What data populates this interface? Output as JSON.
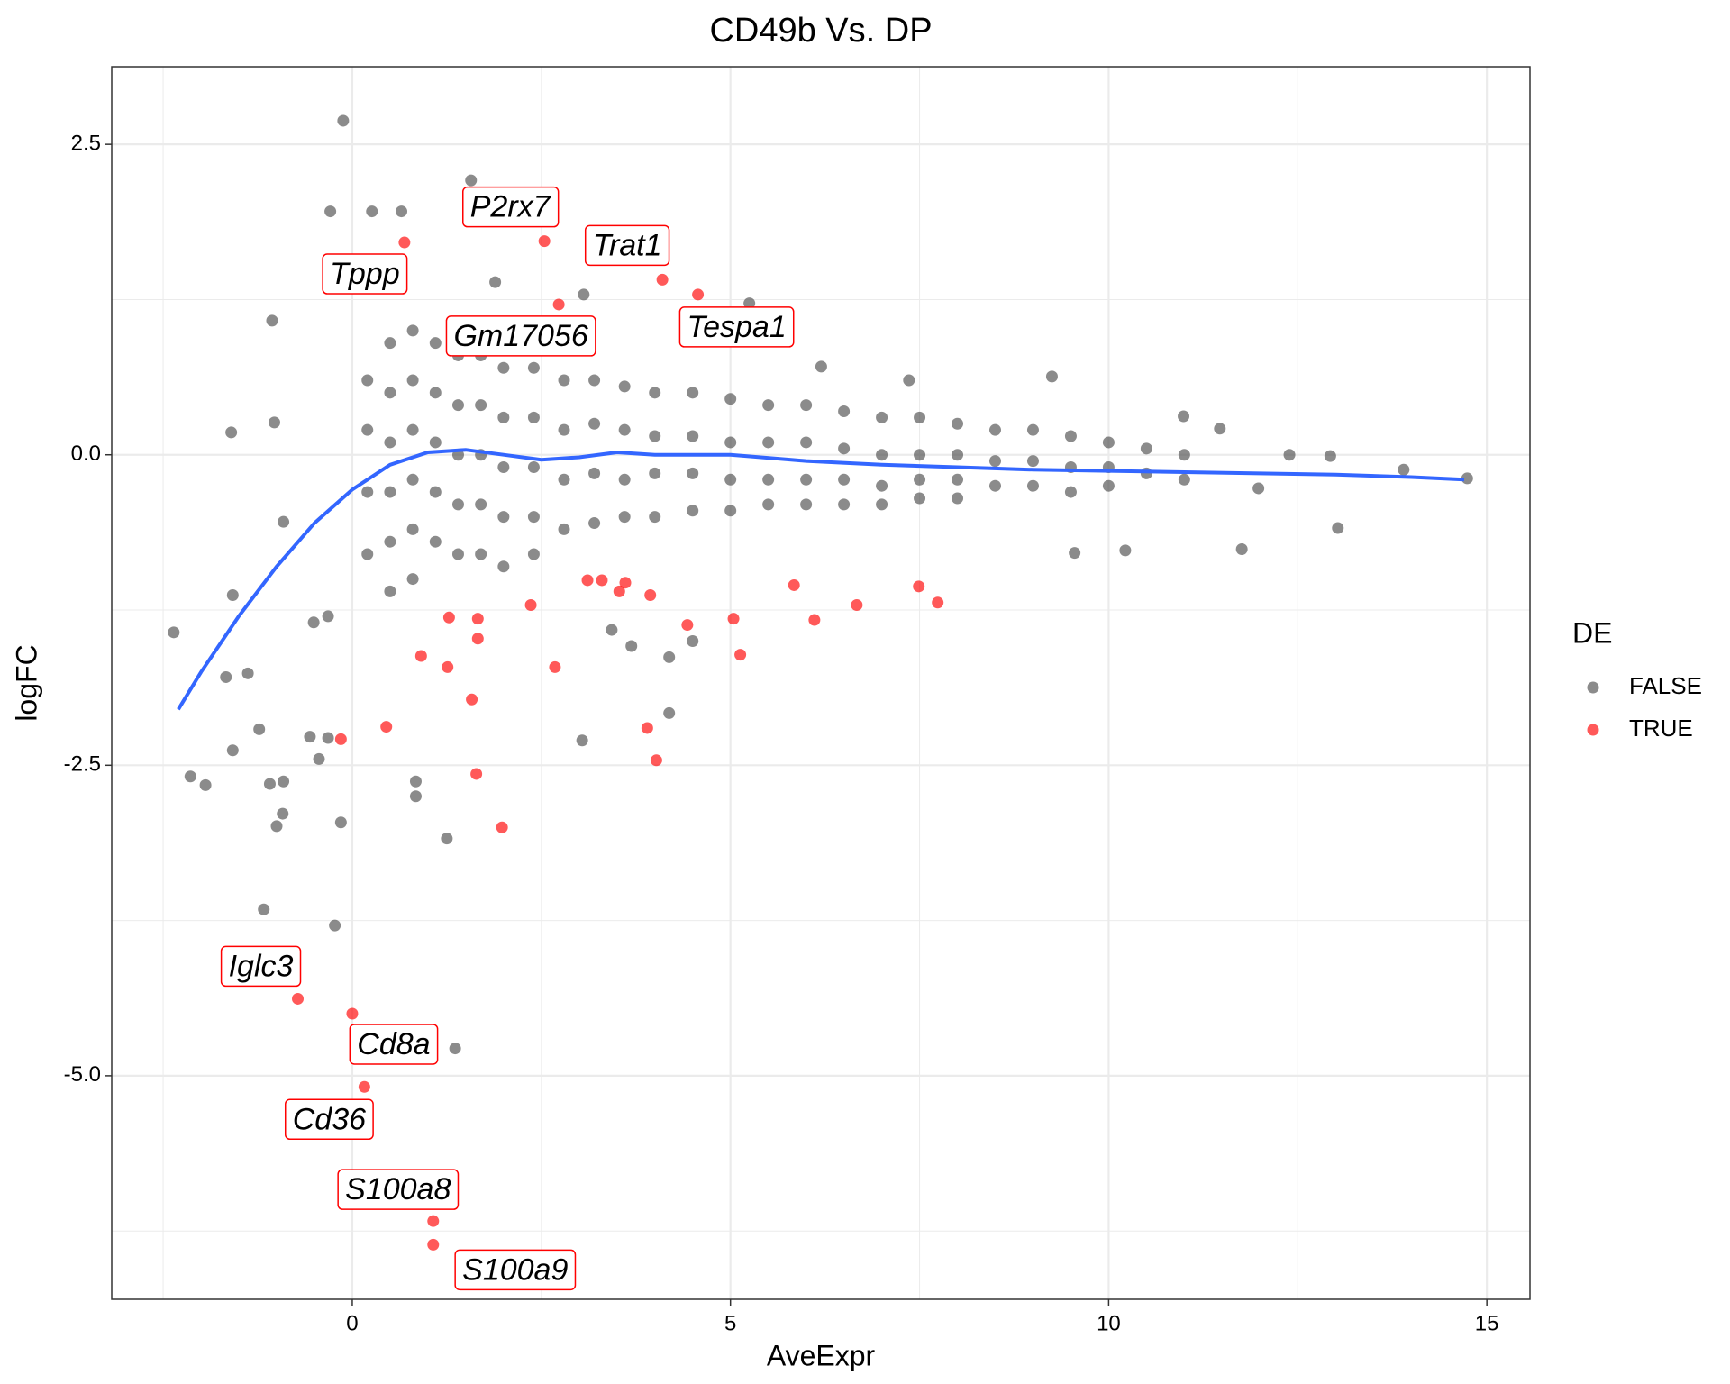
{
  "chart_data": {
    "type": "scatter",
    "title": "CD49b Vs. DP",
    "x_label": "AveExpr",
    "y_label": "logFC",
    "legend_title": "DE",
    "legend_position": "right",
    "xlim": [
      -3.18,
      15.57
    ],
    "ylim": [
      -6.8,
      3.125
    ],
    "xticks": [
      0,
      5,
      10,
      15
    ],
    "yticks": [
      {
        "value": -5,
        "label": "-5.0"
      },
      {
        "value": -2.5,
        "label": "-2.5"
      },
      {
        "value": 0,
        "label": "0.0"
      },
      2.5
    ],
    "x_minor_grid": [
      -2.5,
      2.5,
      7.5,
      12.5
    ],
    "y_minor_grid": [
      -6.25,
      -3.75,
      -1.25,
      1.25
    ],
    "grid": true,
    "series": [
      {
        "name": "FALSE",
        "color": "#4d4d4d",
        "x": [
          0.2,
          0.2,
          0.2,
          0.2,
          0.5,
          0.5,
          0.5,
          0.5,
          0.5,
          0.5,
          0.8,
          0.8,
          0.8,
          0.8,
          0.8,
          0.8,
          1.1,
          1.1,
          1.1,
          1.1,
          1.1,
          1.4,
          1.4,
          1.4,
          1.4,
          1.4,
          1.7,
          1.7,
          1.7,
          1.7,
          1.7,
          2.0,
          2.0,
          2.0,
          2.0,
          2.0,
          2.4,
          2.4,
          2.4,
          2.4,
          2.4,
          2.8,
          2.8,
          2.8,
          2.8,
          3.2,
          3.2,
          3.2,
          3.2,
          3.6,
          3.6,
          3.6,
          3.6,
          4.0,
          4.0,
          4.0,
          4.0,
          4.5,
          4.5,
          4.5,
          4.5,
          5.0,
          5.0,
          5.0,
          5.0,
          5.5,
          5.5,
          5.5,
          5.5,
          6.0,
          6.0,
          6.0,
          6.0,
          6.5,
          6.5,
          6.5,
          6.5,
          7.0,
          7.0,
          7.0,
          7.0,
          7.5,
          7.5,
          7.5,
          7.5,
          8.0,
          8.0,
          8.0,
          8.0,
          8.5,
          8.5,
          8.5,
          9.0,
          9.0,
          9.0,
          9.5,
          9.5,
          9.5,
          10.0,
          10.0,
          10.0,
          10.5,
          10.5,
          11.0,
          11.0,
          -0.12,
          1.57,
          -0.29,
          0.26,
          0.65,
          -1.06,
          -1.6,
          -2.36,
          -1.58,
          -1.67,
          -1.38,
          -1.58,
          -1.23,
          -2.14,
          -1.94,
          -1.09,
          -0.91,
          -1.0,
          -0.92,
          -1.17,
          -0.23,
          -0.15,
          1.36,
          1.25,
          0.84,
          0.84,
          3.04,
          4.19,
          13.03,
          13.9,
          14.74,
          12.93,
          11.76,
          9.25,
          10.99,
          3.06,
          1.89,
          5.25,
          -1.03,
          -0.91,
          -0.32,
          -0.51,
          -0.56,
          -0.32,
          -0.44,
          3.43,
          3.69,
          4.19,
          4.5,
          6.2,
          7.36,
          9.55,
          10.22,
          11.47,
          12.39,
          11.98
        ],
        "values": [
          0.6,
          0.2,
          -0.3,
          -0.8,
          0.9,
          0.5,
          0.1,
          -0.3,
          -0.7,
          -1.1,
          1.0,
          0.6,
          0.2,
          -0.2,
          -0.6,
          -1.0,
          0.9,
          0.5,
          0.1,
          -0.3,
          -0.7,
          0.8,
          0.4,
          0.0,
          -0.4,
          -0.8,
          0.8,
          0.4,
          0.0,
          -0.4,
          -0.8,
          0.7,
          0.3,
          -0.1,
          -0.5,
          -0.9,
          0.7,
          0.3,
          -0.1,
          -0.5,
          -0.8,
          0.6,
          0.2,
          -0.2,
          -0.6,
          0.6,
          0.25,
          -0.15,
          -0.55,
          0.55,
          0.2,
          -0.2,
          -0.5,
          0.5,
          0.15,
          -0.15,
          -0.5,
          0.5,
          0.15,
          -0.15,
          -0.45,
          0.45,
          0.1,
          -0.2,
          -0.45,
          0.4,
          0.1,
          -0.2,
          -0.4,
          0.4,
          0.1,
          -0.2,
          -0.4,
          0.35,
          0.05,
          -0.2,
          -0.4,
          0.3,
          0.0,
          -0.25,
          -0.4,
          0.3,
          0.0,
          -0.2,
          -0.35,
          0.25,
          0.0,
          -0.2,
          -0.35,
          0.2,
          -0.05,
          -0.25,
          0.2,
          -0.05,
          -0.25,
          0.15,
          -0.1,
          -0.3,
          0.1,
          -0.1,
          -0.25,
          0.05,
          -0.15,
          0.0,
          -0.2,
          2.69,
          2.21,
          1.96,
          1.96,
          1.96,
          1.08,
          0.18,
          -1.43,
          -1.13,
          -1.79,
          -1.76,
          -2.38,
          -2.21,
          -2.59,
          -2.66,
          -2.65,
          -2.63,
          -2.99,
          -2.89,
          -3.66,
          -3.79,
          -2.96,
          -4.78,
          -3.09,
          -2.63,
          -2.75,
          -2.3,
          -2.08,
          -0.59,
          -0.12,
          -0.19,
          -0.01,
          -0.76,
          0.63,
          0.31,
          1.29,
          1.39,
          1.22,
          0.26,
          -0.54,
          -1.3,
          -1.35,
          -2.27,
          -2.28,
          -2.45,
          -1.41,
          -1.54,
          -1.63,
          -1.5,
          0.71,
          0.6,
          -0.79,
          -0.77,
          0.21,
          0.0,
          -0.27
        ]
      },
      {
        "name": "TRUE",
        "color": "#ff0000",
        "x": [
          1.28,
          1.66,
          1.66,
          1.26,
          0.91,
          0.45,
          -0.15,
          1.58,
          1.64,
          1.98,
          2.36,
          2.68,
          3.11,
          3.3,
          3.53,
          3.61,
          3.94,
          3.9,
          4.02,
          4.43,
          5.04,
          5.13,
          5.84,
          6.11,
          6.67,
          7.49,
          7.74,
          2.54,
          4.1,
          0.69,
          4.57,
          2.73,
          -0.72,
          0.0,
          0.16,
          1.07,
          1.07
        ],
        "values": [
          -1.31,
          -1.32,
          -1.48,
          -1.71,
          -1.62,
          -2.19,
          -2.29,
          -1.97,
          -2.57,
          -3.0,
          -1.21,
          -1.71,
          -1.01,
          -1.01,
          -1.1,
          -1.03,
          -1.13,
          -2.2,
          -2.46,
          -1.37,
          -1.32,
          -1.61,
          -1.05,
          -1.33,
          -1.21,
          -1.06,
          -1.19,
          1.72,
          1.41,
          1.71,
          1.29,
          1.21,
          -4.38,
          -4.5,
          -5.09,
          -6.17,
          -6.36
        ]
      }
    ],
    "trend": {
      "color": "#3366ff",
      "x": [
        -2.3,
        -2,
        -1.5,
        -1,
        -0.5,
        0,
        0.5,
        1,
        1.5,
        2,
        2.5,
        3,
        3.5,
        4,
        4.5,
        5,
        6,
        7,
        8,
        9,
        10,
        11,
        12,
        13,
        14,
        14.7
      ],
      "values": [
        -2.05,
        -1.75,
        -1.3,
        -0.9,
        -0.55,
        -0.28,
        -0.08,
        0.02,
        0.04,
        0,
        -0.04,
        -0.02,
        0.02,
        0.0,
        0.0,
        0.0,
        -0.05,
        -0.08,
        -0.1,
        -0.12,
        -0.13,
        -0.14,
        -0.15,
        -0.16,
        -0.18,
        -0.2
      ]
    },
    "annotations": [
      {
        "text": "P2rx7",
        "x": 2.54,
        "y": 1.72
      },
      {
        "text": "Trat1",
        "x": 4.1,
        "y": 1.41
      },
      {
        "text": "Tppp",
        "x": 0.69,
        "y": 1.71
      },
      {
        "text": "Tespa1",
        "x": 4.57,
        "y": 1.29
      },
      {
        "text": "Gm17056",
        "x": 2.73,
        "y": 1.21
      },
      {
        "text": "Iglc3",
        "x": -0.72,
        "y": -4.38
      },
      {
        "text": "Cd8a",
        "x": 0.0,
        "y": -4.5
      },
      {
        "text": "Cd36",
        "x": 0.16,
        "y": -5.09
      },
      {
        "text": "S100a8",
        "x": 1.07,
        "y": -6.17
      },
      {
        "text": "S100a9",
        "x": 1.07,
        "y": -6.36
      }
    ]
  }
}
